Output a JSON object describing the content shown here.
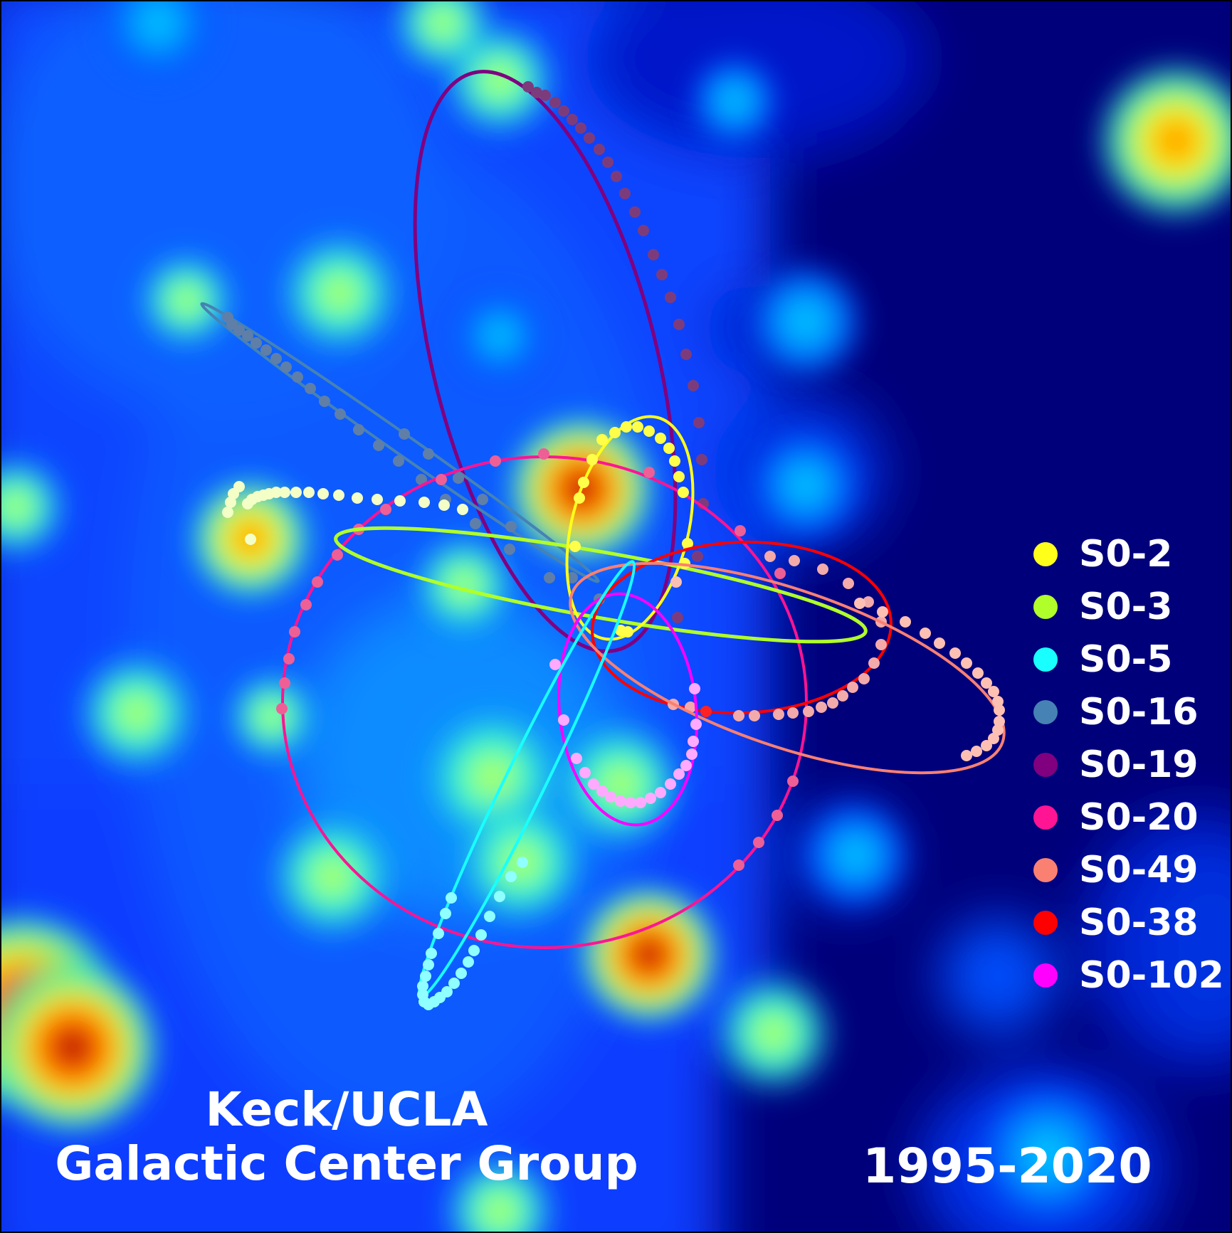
{
  "credit": {
    "line1": "Keck/UCLA",
    "line2": "Galactic Center Group"
  },
  "years": "1995-2020",
  "legend": [
    {
      "label": "S0-2",
      "color": "#ffff1a"
    },
    {
      "label": "S0-3",
      "color": "#b0ff2a"
    },
    {
      "label": "S0-5",
      "color": "#19ffff"
    },
    {
      "label": "S0-16",
      "color": "#4682b4"
    },
    {
      "label": "S0-19",
      "color": "#800080"
    },
    {
      "label": "S0-20",
      "color": "#ff1493"
    },
    {
      "label": "S0-49",
      "color": "#fa8072"
    },
    {
      "label": "S0-38",
      "color": "#ff0000"
    },
    {
      "label": "S0-102",
      "color": "#ff00ff"
    }
  ],
  "colors": {
    "background": "#000070"
  }
}
